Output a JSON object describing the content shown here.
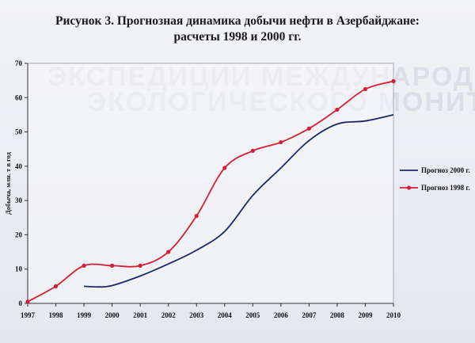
{
  "colors": {
    "series_2000": "#1c2a6b",
    "series_1998": "#d41f3a",
    "axis": "#333333",
    "plot_bg": "#f7f7f9"
  },
  "chart_data": {
    "type": "line",
    "title": "Рисунок 3. Прогнозная динамика добычи нефти в Азербайджане:",
    "subtitle": "расчеты 1998 и 2000 гг.",
    "xlabel": "",
    "ylabel": "Добыча, млн. т в год",
    "x": [
      "1997",
      "1998",
      "1999",
      "2000",
      "2001",
      "2002",
      "2003",
      "2004",
      "2005",
      "2006",
      "2007",
      "2008",
      "2009",
      "2010"
    ],
    "xlim": [
      1997,
      2010
    ],
    "ylim": [
      0,
      70
    ],
    "yticks": [
      0,
      10,
      20,
      30,
      40,
      50,
      60,
      70
    ],
    "grid": false,
    "legend_position": "right",
    "series": [
      {
        "name": "Прогноз 2000 г.",
        "markers": false,
        "points": [
          [
            1999,
            5
          ],
          [
            1999.5,
            4.8
          ],
          [
            2000,
            5.2
          ],
          [
            2001,
            8
          ],
          [
            2002,
            11.5
          ],
          [
            2003,
            15.5
          ],
          [
            2004,
            21
          ],
          [
            2005,
            31.5
          ],
          [
            2006,
            39.5
          ],
          [
            2007,
            47.5
          ],
          [
            2008,
            52.3
          ],
          [
            2009,
            53.2
          ],
          [
            2010,
            55
          ]
        ]
      },
      {
        "name": "Прогноз 1998 г.",
        "markers": true,
        "points": [
          [
            1997,
            0.5
          ],
          [
            1998,
            5
          ],
          [
            1999,
            11
          ],
          [
            2000,
            11
          ],
          [
            2001,
            11
          ],
          [
            2002,
            15
          ],
          [
            2003,
            25.5
          ],
          [
            2004,
            39.5
          ],
          [
            2005,
            44.5
          ],
          [
            2006,
            47
          ],
          [
            2007,
            51
          ],
          [
            2008,
            56.5
          ],
          [
            2009,
            62.5
          ],
          [
            2010,
            64.8
          ]
        ]
      }
    ]
  }
}
